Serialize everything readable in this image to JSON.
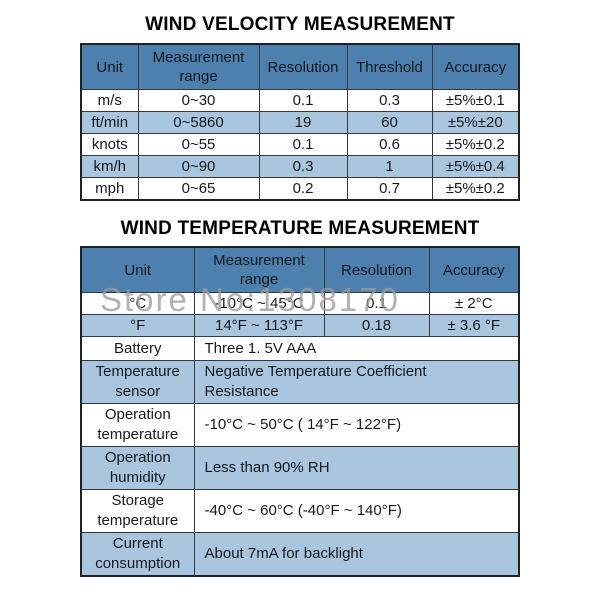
{
  "colors": {
    "header_bg": "#4e80ad",
    "row_alt_bg": "#a9c6de",
    "row_bg": "#ffffff",
    "border": "#33383f",
    "text": "#15191f",
    "watermark": "#9c9c9c"
  },
  "velocity_table": {
    "title": "WIND VELOCITY MEASUREMENT",
    "columns": [
      "Unit",
      "Measurement range",
      "Resolution",
      "Threshold",
      "Accuracy"
    ],
    "rows": [
      [
        "m/s",
        "0~30",
        "0.1",
        "0.3",
        "±5%±0.1"
      ],
      [
        "ft/min",
        "0~5860",
        "19",
        "60",
        "±5%±20"
      ],
      [
        "knots",
        "0~55",
        "0.1",
        "0.6",
        "±5%±0.2"
      ],
      [
        "km/h",
        "0~90",
        "0.3",
        "1",
        "±5%±0.4"
      ],
      [
        "mph",
        "0~65",
        "0.2",
        "0.7",
        "±5%±0.2"
      ]
    ]
  },
  "temperature_table": {
    "title": "WIND TEMPERATURE MEASUREMENT",
    "columns": [
      "Unit",
      "Measurement range",
      "Resolution",
      "Accuracy"
    ],
    "unit_rows": [
      [
        "°C",
        "-10°C ~ 45°C",
        "0.1",
        "± 2°C"
      ],
      [
        "°F",
        "14°F ~ 113°F",
        "0.18",
        "± 3.6 °F"
      ]
    ],
    "spec_rows": [
      [
        "Battery",
        "Three 1. 5V AAA"
      ],
      [
        "Temperature sensor",
        "Negative Temperature Coefficient\nResistance"
      ],
      [
        "Operation temperature",
        "-10°C ~ 50°C ( 14°F ~ 122°F)"
      ],
      [
        "Operation humidity",
        "Less than 90% RH"
      ],
      [
        "Storage temperature",
        "-40°C ~ 60°C (-40°F ~ 140°F)"
      ],
      [
        "Current consumption",
        "About 7mA for backlight"
      ]
    ]
  },
  "watermark": {
    "text": "Store No:1308170"
  }
}
